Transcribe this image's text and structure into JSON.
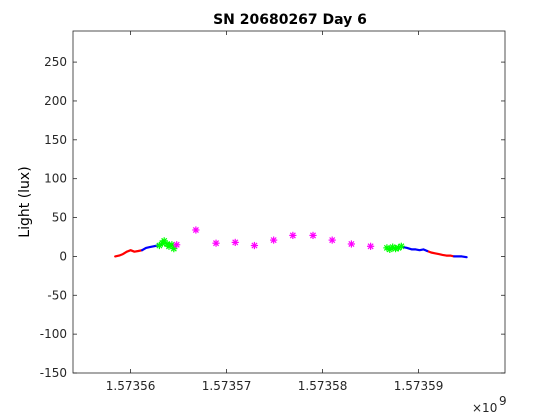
{
  "chart_data": {
    "type": "line",
    "title": "SN 20680267 Day 6",
    "xlabel": "",
    "ylabel": "Light (lux)",
    "x_exponent_label": "×10",
    "x_exponent_power": "9",
    "xlim": [
      1.573554,
      1.573599
    ],
    "ylim": [
      -150,
      290
    ],
    "yticks": [
      -150,
      -100,
      -50,
      0,
      50,
      100,
      150,
      200,
      250
    ],
    "ytick_labels": [
      "-150",
      "-100",
      "-50",
      "0",
      "50",
      "100",
      "150",
      "200",
      "250"
    ],
    "xticks": [
      1.57356,
      1.57357,
      1.57358,
      1.57359
    ],
    "xtick_labels": [
      "1.57356",
      "1.57357",
      "1.57358",
      "1.57359"
    ],
    "grid": false,
    "series": [
      {
        "style": "line",
        "color": "#ff0000",
        "segments": [
          [
            [
              1.5735584,
              0
            ],
            [
              1.5735588,
              1
            ],
            [
              1.5735592,
              3
            ],
            [
              1.5735596,
              6
            ],
            [
              1.57356,
              8
            ],
            [
              1.5735604,
              6
            ],
            [
              1.5735608,
              7
            ],
            [
              1.5735612,
              8
            ]
          ],
          [
            [
              1.5735909,
              7
            ],
            [
              1.5735913,
              5
            ],
            [
              1.5735917,
              4
            ],
            [
              1.5735921,
              3
            ],
            [
              1.5735925,
              2
            ],
            [
              1.5735929,
              1
            ],
            [
              1.5735933,
              1
            ],
            [
              1.5735937,
              0
            ]
          ]
        ]
      },
      {
        "style": "line",
        "color": "#0000ff",
        "segments": [
          [
            [
              1.5735612,
              8
            ],
            [
              1.5735616,
              11
            ],
            [
              1.573562,
              12
            ],
            [
              1.5735624,
              13
            ],
            [
              1.5735628,
              14
            ],
            [
              1.5735632,
              15
            ]
          ],
          [
            [
              1.5735884,
              12
            ],
            [
              1.5735888,
              11
            ],
            [
              1.5735893,
              9
            ],
            [
              1.5735897,
              9
            ],
            [
              1.5735901,
              8
            ],
            [
              1.5735905,
              9
            ],
            [
              1.5735909,
              7
            ]
          ],
          [
            [
              1.5735937,
              0
            ],
            [
              1.5735941,
              0
            ],
            [
              1.5735945,
              0
            ],
            [
              1.573595,
              -1
            ]
          ]
        ]
      },
      {
        "style": "markers",
        "marker": "asterisk",
        "color": "#00ff00",
        "points": [
          [
            1.573563,
            14
          ],
          [
            1.5735633,
            17
          ],
          [
            1.5735635,
            20
          ],
          [
            1.5735638,
            16
          ],
          [
            1.573564,
            13
          ],
          [
            1.5735643,
            15
          ],
          [
            1.5735645,
            10
          ],
          [
            1.5735867,
            11
          ],
          [
            1.573587,
            9
          ],
          [
            1.5735873,
            12
          ],
          [
            1.5735876,
            10
          ],
          [
            1.5735879,
            11
          ],
          [
            1.5735882,
            13
          ]
        ]
      },
      {
        "style": "markers",
        "marker": "asterisk",
        "color": "#ff00ff",
        "points": [
          [
            1.5735648,
            15
          ],
          [
            1.5735668,
            34
          ],
          [
            1.5735689,
            17
          ],
          [
            1.5735709,
            18
          ],
          [
            1.5735729,
            14
          ],
          [
            1.5735749,
            21
          ],
          [
            1.5735769,
            27
          ],
          [
            1.573579,
            27
          ],
          [
            1.573581,
            21
          ],
          [
            1.573583,
            16
          ],
          [
            1.573585,
            13
          ]
        ]
      }
    ]
  }
}
